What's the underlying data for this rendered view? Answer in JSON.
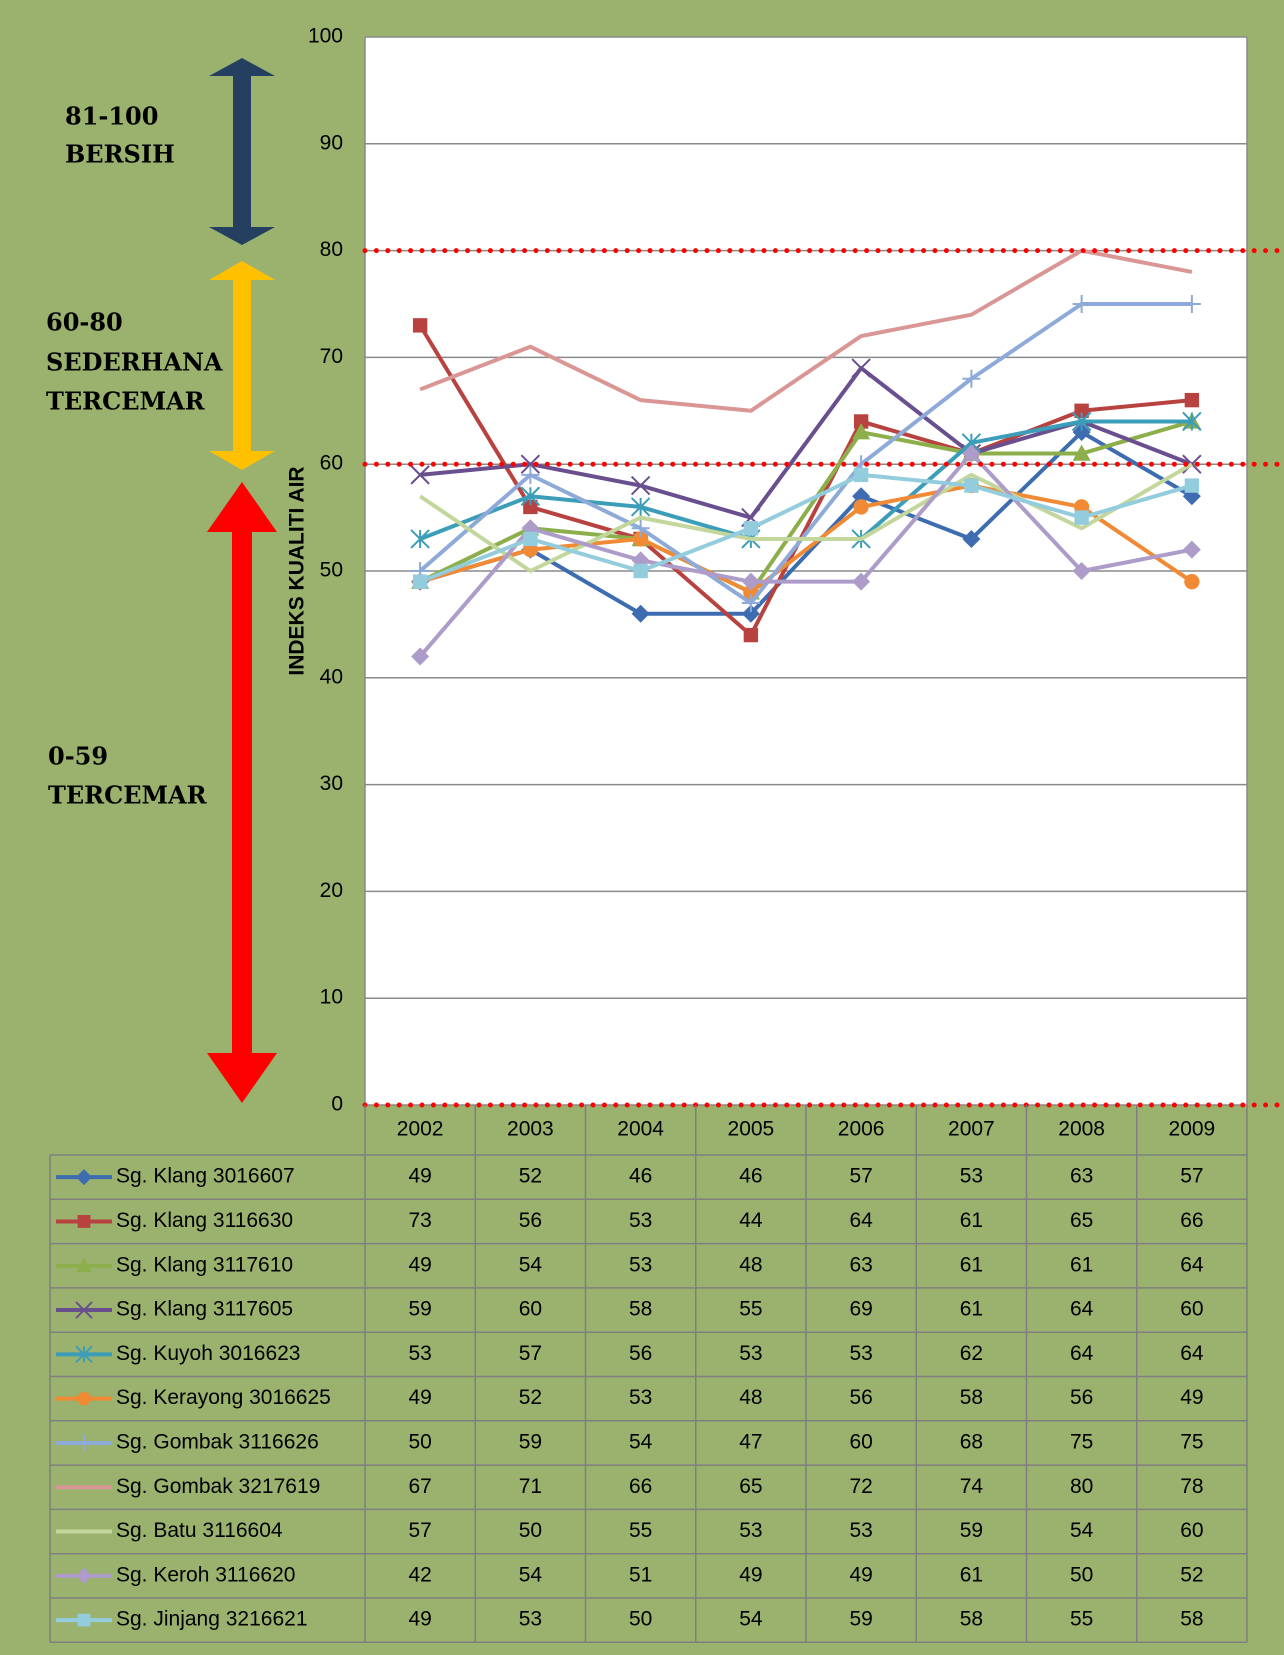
{
  "chart_data": {
    "type": "line",
    "y_label": "INDEKS KUALITI AIR",
    "categories": [
      "2002",
      "2003",
      "2004",
      "2005",
      "2006",
      "2007",
      "2008",
      "2009"
    ],
    "ylim": [
      0,
      100
    ],
    "yticks": [
      0,
      10,
      20,
      30,
      40,
      50,
      60,
      70,
      80,
      90,
      100
    ],
    "grid": true,
    "reference_lines": [
      80,
      60,
      0
    ],
    "annotations": [
      [
        "81-100",
        "BERSIH"
      ],
      [
        "60-80",
        "SEDERHANA",
        "TERCEMAR"
      ],
      [
        "0-59",
        "TERCEMAR"
      ]
    ],
    "series": [
      {
        "name": "Sg. Klang 3016607",
        "color": "#3d6db0",
        "marker": "diamond",
        "values": [
          49,
          52,
          46,
          46,
          57,
          53,
          63,
          57
        ]
      },
      {
        "name": "Sg. Klang 3116630",
        "color": "#b8423f",
        "marker": "square",
        "values": [
          73,
          56,
          53,
          44,
          64,
          61,
          65,
          66
        ]
      },
      {
        "name": "Sg. Klang 3117610",
        "color": "#8caf4c",
        "marker": "triangle",
        "values": [
          49,
          54,
          53,
          48,
          63,
          61,
          61,
          64
        ]
      },
      {
        "name": "Sg. Klang 3117605",
        "color": "#6a4f8e",
        "marker": "x",
        "values": [
          59,
          60,
          58,
          55,
          69,
          61,
          64,
          60
        ]
      },
      {
        "name": "Sg. Kuyoh 3016623",
        "color": "#3b9db8",
        "marker": "star",
        "values": [
          53,
          57,
          56,
          53,
          53,
          62,
          64,
          64
        ]
      },
      {
        "name": "Sg. Kerayong 3016625",
        "color": "#f08a35",
        "marker": "circle",
        "values": [
          49,
          52,
          53,
          48,
          56,
          58,
          56,
          49
        ]
      },
      {
        "name": "Sg. Gombak 3116626",
        "color": "#8eaad8",
        "marker": "plus",
        "values": [
          50,
          59,
          54,
          47,
          60,
          68,
          75,
          75
        ]
      },
      {
        "name": "Sg. Gombak 3217619",
        "color": "#d99694",
        "marker": "none",
        "values": [
          67,
          71,
          66,
          65,
          72,
          74,
          80,
          78
        ]
      },
      {
        "name": "Sg. Batu 3116604",
        "color": "#c3d69b",
        "marker": "none",
        "values": [
          57,
          50,
          55,
          53,
          53,
          59,
          54,
          60
        ]
      },
      {
        "name": "Sg. Keroh 3116620",
        "color": "#ad9cc9",
        "marker": "diamond",
        "values": [
          42,
          54,
          51,
          49,
          49,
          61,
          50,
          52
        ]
      },
      {
        "name": "Sg. Jinjang 3216621",
        "color": "#93cddd",
        "marker": "square",
        "values": [
          49,
          53,
          50,
          54,
          59,
          58,
          55,
          58
        ]
      }
    ]
  }
}
